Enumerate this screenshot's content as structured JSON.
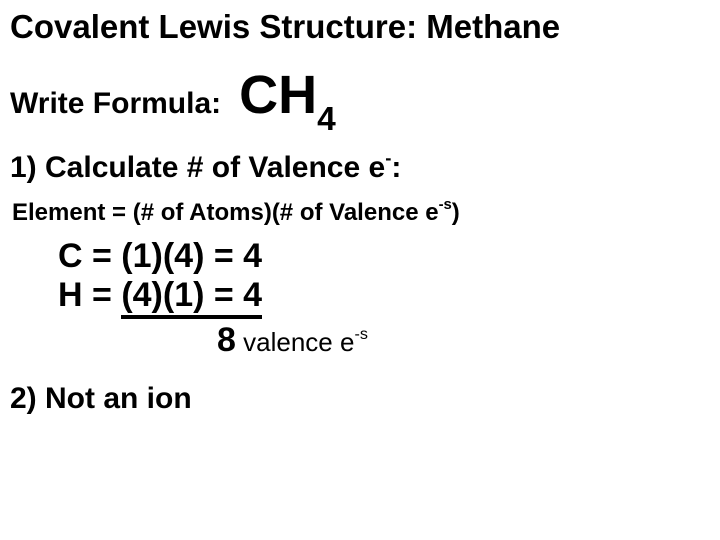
{
  "title": "Covalent Lewis Structure: Methane",
  "formula": {
    "label": "Write Formula:",
    "base": "CH",
    "sub": "4"
  },
  "step1": {
    "prefix": "1) Calculate # of Valence e",
    "sup": "-",
    "suffix": ":"
  },
  "element_formula": {
    "prefix": "Element = (# of Atoms)(# of Valence e",
    "sup": "-s",
    "suffix": ")"
  },
  "calc": {
    "c_line": "C = (1)(4) = 4",
    "h_prefix": "H = ",
    "h_calc": "(4)(1) = 4"
  },
  "total": {
    "value": "8",
    "label_prefix": " valence e",
    "label_sup": "-s"
  },
  "step2": "2) Not an ion"
}
